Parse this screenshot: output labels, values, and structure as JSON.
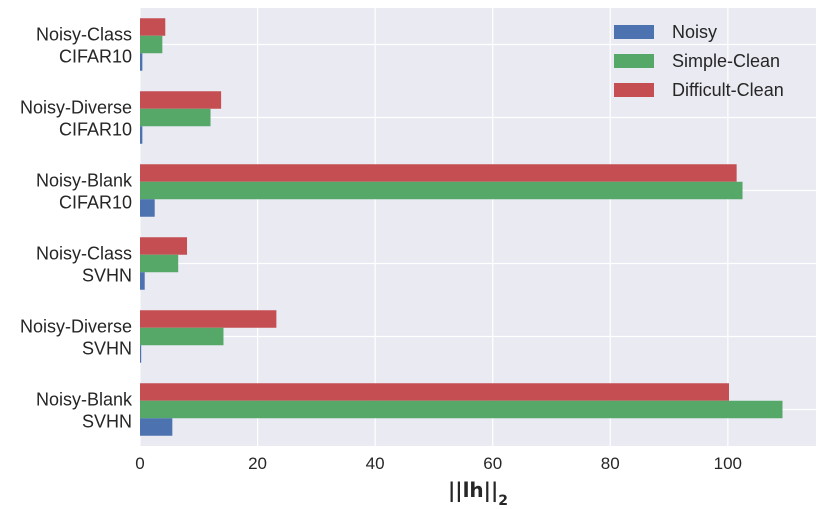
{
  "chart_data": {
    "type": "bar",
    "orientation": "horizontal",
    "categories": [
      [
        "Noisy-Class",
        "CIFAR10"
      ],
      [
        "Noisy-Diverse",
        "CIFAR10"
      ],
      [
        "Noisy-Blank",
        "CIFAR10"
      ],
      [
        "Noisy-Class",
        "SVHN"
      ],
      [
        "Noisy-Diverse",
        "SVHN"
      ],
      [
        "Noisy-Blank",
        "SVHN"
      ]
    ],
    "series": [
      {
        "name": "Noisy",
        "color": "#4c72b0",
        "values": [
          0.4,
          0.4,
          2.5,
          0.8,
          0.2,
          5.5
        ]
      },
      {
        "name": "Simple-Clean",
        "color": "#55a868",
        "values": [
          3.8,
          12.0,
          102.5,
          6.5,
          14.2,
          109.3
        ]
      },
      {
        "name": "Difficult-Clean",
        "color": "#c44e52",
        "values": [
          4.3,
          13.8,
          101.5,
          8.0,
          23.2,
          100.2
        ]
      }
    ],
    "xlabel_main": "||lh||",
    "xlabel_sub": "2",
    "xlim": [
      0,
      115
    ],
    "xticks": [
      0,
      20,
      40,
      60,
      80,
      100
    ],
    "grid": true,
    "legend_position": "top-right",
    "background": "#eaeaf2"
  }
}
